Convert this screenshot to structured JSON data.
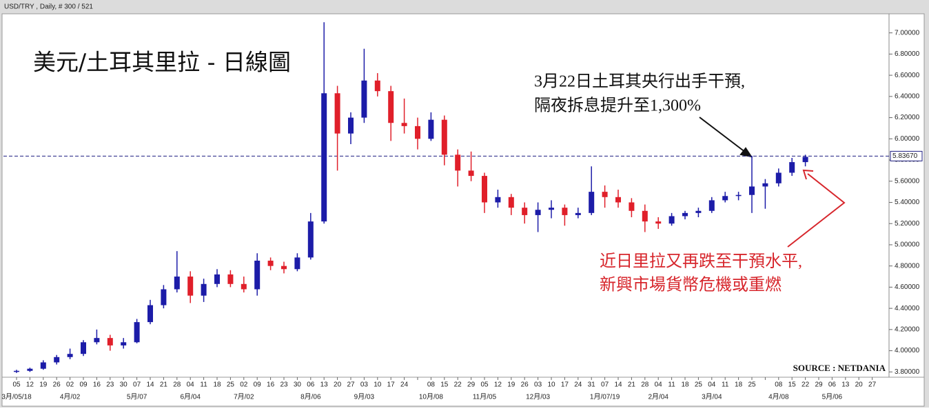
{
  "chart_data": {
    "type": "candlestick",
    "header": "USD/TRY , Daily, # 300 / 521",
    "title": "美元/土耳其里拉 - 日線圖",
    "annotations": [
      "3月22日土耳其央行出手干預,",
      "隔夜拆息提升至1,300%",
      "近日里拉又再跌至干預水平,",
      "新興市場貨幣危機或重燃"
    ],
    "source": "SOURCE : NETDANIA",
    "up_color": "#1c1ca8",
    "down_color": "#e01f2a",
    "categories": [
      "05",
      "12",
      "19",
      "26",
      "02",
      "09",
      "16",
      "23",
      "30",
      "07",
      "14",
      "21",
      "28",
      "04",
      "11",
      "18",
      "25",
      "02",
      "09",
      "16",
      "23",
      "30",
      "06",
      "13",
      "20",
      "27",
      "03",
      "10",
      "17",
      "24",
      null,
      "08",
      "15",
      "22",
      "29",
      "05",
      "12",
      "19",
      "26",
      "03",
      "10",
      "17",
      "24",
      "31",
      "07",
      "14",
      "21",
      "28",
      "04",
      "11",
      "18",
      "25",
      "04",
      "11",
      "18",
      "25",
      null,
      "08",
      "15",
      "22",
      "29",
      "06",
      "13",
      "20",
      "27"
    ],
    "months": [
      "3月/05/18",
      null,
      null,
      null,
      "4月/02",
      null,
      null,
      null,
      null,
      "5月/07",
      null,
      null,
      null,
      "6月/04",
      null,
      null,
      null,
      "7月/02",
      null,
      null,
      null,
      null,
      "8月/06",
      null,
      null,
      null,
      "9月/03",
      null,
      null,
      null,
      null,
      "10月/08",
      null,
      null,
      null,
      "11月/05",
      null,
      null,
      null,
      "12月/03",
      null,
      null,
      null,
      null,
      "1月/07/19",
      null,
      null,
      null,
      "2月/04",
      null,
      null,
      null,
      "3月/04",
      null,
      null,
      null,
      null,
      "4月/08",
      null,
      null,
      null,
      "5月/06",
      null,
      null,
      null
    ],
    "open": [
      3.8,
      3.81,
      3.83,
      3.89,
      3.94,
      3.97,
      4.08,
      4.12,
      4.05,
      4.08,
      4.27,
      4.43,
      4.58,
      4.7,
      4.52,
      4.63,
      4.72,
      4.63,
      4.58,
      4.85,
      4.8,
      4.77,
      4.88,
      5.22,
      6.43,
      6.05,
      6.2,
      6.55,
      6.45,
      6.15,
      6.12,
      6.0,
      6.18,
      5.85,
      5.7,
      5.65,
      5.4,
      5.45,
      5.35,
      5.28,
      5.33,
      5.35,
      5.28,
      5.3,
      5.5,
      5.45,
      5.4,
      5.32,
      5.22,
      5.2,
      5.27,
      5.3,
      5.32,
      5.42,
      5.46,
      5.47,
      5.55,
      5.58,
      5.68,
      5.78,
      null,
      null,
      null,
      null,
      null
    ],
    "high": [
      3.82,
      3.84,
      3.91,
      3.96,
      4.02,
      4.1,
      4.2,
      4.15,
      4.12,
      4.3,
      4.48,
      4.62,
      4.94,
      4.75,
      4.68,
      4.77,
      4.76,
      4.7,
      4.92,
      4.88,
      4.84,
      4.92,
      5.3,
      7.1,
      6.5,
      6.25,
      6.85,
      6.62,
      6.5,
      6.38,
      6.2,
      6.25,
      6.22,
      5.9,
      5.88,
      5.68,
      5.52,
      5.48,
      5.4,
      5.4,
      5.42,
      5.38,
      5.35,
      5.74,
      5.56,
      5.52,
      5.44,
      5.38,
      5.26,
      5.3,
      5.32,
      5.35,
      5.45,
      5.5,
      5.5,
      5.84,
      5.62,
      5.72,
      5.82,
      5.85,
      null,
      null,
      null,
      null,
      null
    ],
    "low": [
      3.79,
      3.8,
      3.82,
      3.87,
      3.92,
      3.95,
      4.06,
      4.0,
      4.02,
      4.07,
      4.25,
      4.4,
      4.55,
      4.45,
      4.46,
      4.6,
      4.6,
      4.55,
      4.52,
      4.76,
      4.73,
      4.75,
      4.86,
      5.2,
      5.7,
      5.95,
      6.15,
      6.4,
      5.98,
      6.05,
      5.9,
      5.98,
      5.75,
      5.55,
      5.6,
      5.3,
      5.35,
      5.28,
      5.2,
      5.12,
      5.25,
      5.18,
      5.25,
      5.28,
      5.35,
      5.35,
      5.26,
      5.12,
      5.15,
      5.18,
      5.24,
      5.26,
      5.3,
      5.4,
      5.42,
      5.3,
      5.34,
      5.55,
      5.65,
      5.74,
      null,
      null,
      null,
      null,
      null
    ],
    "close": [
      3.81,
      3.83,
      3.89,
      3.94,
      3.97,
      4.08,
      4.12,
      4.05,
      4.08,
      4.27,
      4.43,
      4.58,
      4.7,
      4.52,
      4.63,
      4.72,
      4.63,
      4.58,
      4.85,
      4.8,
      4.77,
      4.88,
      5.22,
      6.43,
      6.05,
      6.2,
      6.55,
      6.45,
      6.15,
      6.12,
      6.0,
      6.18,
      5.85,
      5.7,
      5.65,
      5.4,
      5.45,
      5.35,
      5.28,
      5.33,
      5.35,
      5.28,
      5.3,
      5.5,
      5.45,
      5.4,
      5.32,
      5.22,
      5.2,
      5.27,
      5.3,
      5.32,
      5.42,
      5.46,
      5.47,
      5.55,
      5.58,
      5.68,
      5.78,
      5.83,
      null,
      null,
      null,
      null,
      null
    ],
    "reference_line": {
      "value": 5.8367,
      "label": "5.83670",
      "color": "#1c1c80"
    },
    "ylim": [
      3.75,
      7.18
    ],
    "yticks": [
      {
        "value": 3.8,
        "label": "3.80000"
      },
      {
        "value": 4.0,
        "label": "4.00000"
      },
      {
        "value": 4.2,
        "label": "4.20000"
      },
      {
        "value": 4.4,
        "label": "4.40000"
      },
      {
        "value": 4.6,
        "label": "4.60000"
      },
      {
        "value": 4.8,
        "label": "4.80000"
      },
      {
        "value": 5.0,
        "label": "5.00000"
      },
      {
        "value": 5.2,
        "label": "5.20000"
      },
      {
        "value": 5.4,
        "label": "5.40000"
      },
      {
        "value": 5.6,
        "label": "5.60000"
      },
      {
        "value": 5.8,
        "label": "5.80000"
      },
      {
        "value": 6.0,
        "label": "6.00000"
      },
      {
        "value": 6.2,
        "label": "6.20000"
      },
      {
        "value": 6.4,
        "label": "6.40000"
      },
      {
        "value": 6.6,
        "label": "6.60000"
      },
      {
        "value": 6.8,
        "label": "6.80000"
      },
      {
        "value": 7.0,
        "label": "7.00000"
      }
    ]
  }
}
